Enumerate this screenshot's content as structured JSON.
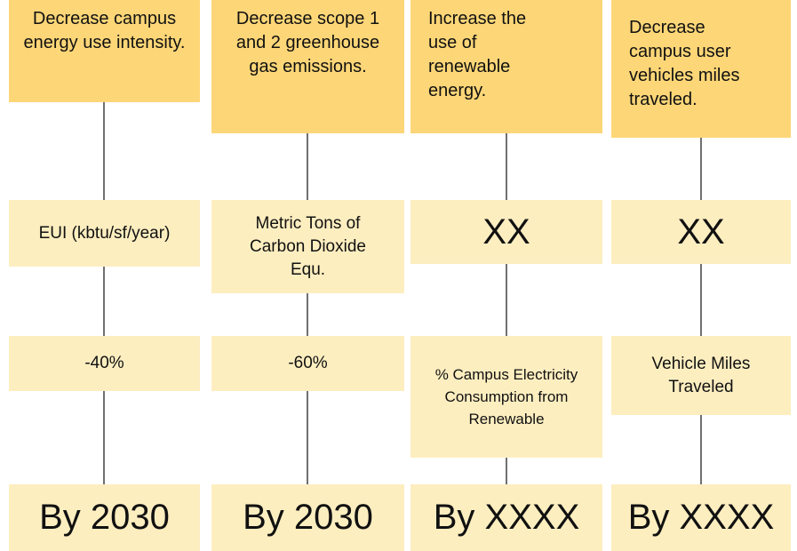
{
  "columns": [
    {
      "goal": "Decrease campus energy use intensity.",
      "metric": "EUI (kbtu/sf/year)",
      "target": "-40%",
      "deadline": "By 2030"
    },
    {
      "goal": "Decrease scope 1 and 2 greenhouse gas emissions.",
      "metric": "Metric Tons of Carbon Dioxide Equ.",
      "target": "-60%",
      "deadline": "By 2030"
    },
    {
      "goal": "Increase the use of renewable energy.",
      "metric": "XX",
      "target": "% Campus Electricity Consumption from Renewable",
      "deadline": "By XXXX"
    },
    {
      "goal": "Decrease campus user vehicles miles traveled.",
      "metric": "XX",
      "target": "Vehicle Miles Traveled",
      "deadline": "By XXXX"
    }
  ]
}
